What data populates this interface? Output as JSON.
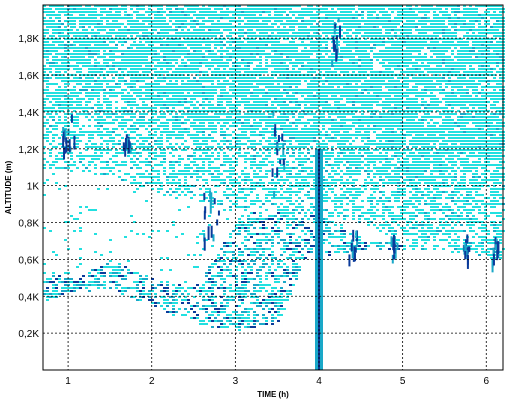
{
  "chart_data": {
    "type": "heatmap",
    "title": "",
    "xlabel": "TIME (h)",
    "ylabel": "ALTITUDE (m)",
    "xlim": [
      0.7,
      6.2
    ],
    "ylim": [
      0,
      1980
    ],
    "x_ticks": [
      {
        "value": 1,
        "label": "1"
      },
      {
        "value": 2,
        "label": "2"
      },
      {
        "value": 3,
        "label": "3"
      },
      {
        "value": 4,
        "label": "4"
      },
      {
        "value": 5,
        "label": "5"
      },
      {
        "value": 6,
        "label": "6"
      }
    ],
    "y_ticks": [
      {
        "value": 200,
        "label": "0,2K"
      },
      {
        "value": 400,
        "label": "0,4K"
      },
      {
        "value": 600,
        "label": "0,6K"
      },
      {
        "value": 800,
        "label": "0,8K"
      },
      {
        "value": 1000,
        "label": "1K"
      },
      {
        "value": 1200,
        "label": "1,2K"
      },
      {
        "value": 1400,
        "label": "1,4K"
      },
      {
        "value": 1600,
        "label": "1,6K"
      },
      {
        "value": 1800,
        "label": "1,8K"
      }
    ],
    "grid": true,
    "colors": {
      "background": "#ffffff",
      "weak": "#22e0e0",
      "medium": "#1aa8c8",
      "strong": "#0a3a9a",
      "grid": "#000000"
    },
    "regions": {
      "upper_noise_floor_m": [
        [
          0.7,
          1100
        ],
        [
          1.5,
          1050
        ],
        [
          2.2,
          950
        ],
        [
          3.0,
          880
        ],
        [
          4.0,
          850
        ],
        [
          4.5,
          800
        ],
        [
          5.0,
          680
        ],
        [
          5.5,
          650
        ],
        [
          6.2,
          600
        ]
      ],
      "boundary_layer_top_m": [
        [
          0.7,
          550
        ],
        [
          1.0,
          500
        ],
        [
          1.5,
          600
        ],
        [
          2.0,
          500
        ],
        [
          2.5,
          450
        ],
        [
          3.0,
          800
        ],
        [
          3.5,
          950
        ],
        [
          4.0,
          900
        ],
        [
          4.5,
          700
        ],
        [
          5.0,
          700
        ],
        [
          5.5,
          650
        ],
        [
          6.2,
          680
        ]
      ],
      "boundary_layer_bottom_m": [
        [
          0.7,
          380
        ],
        [
          1.0,
          420
        ],
        [
          1.5,
          440
        ],
        [
          2.0,
          350
        ],
        [
          2.5,
          250
        ],
        [
          3.0,
          220
        ],
        [
          3.5,
          250
        ],
        [
          3.8,
          600
        ],
        [
          4.5,
          650
        ],
        [
          6.2,
          650
        ]
      ],
      "strong_features": [
        {
          "x": 1.0,
          "y": 1300,
          "w": 0.15,
          "h": 200
        },
        {
          "x": 1.7,
          "y": 1250,
          "w": 0.1,
          "h": 60
        },
        {
          "x": 2.7,
          "y": 850,
          "w": 0.2,
          "h": 300
        },
        {
          "x": 3.5,
          "y": 1200,
          "w": 0.15,
          "h": 500
        },
        {
          "x": 4.2,
          "y": 1800,
          "w": 0.12,
          "h": 250
        },
        {
          "x": 4.4,
          "y": 700,
          "w": 0.1,
          "h": 150
        },
        {
          "x": 4.9,
          "y": 680,
          "w": 0.1,
          "h": 120
        },
        {
          "x": 5.75,
          "y": 680,
          "w": 0.08,
          "h": 120
        },
        {
          "x": 6.1,
          "y": 650,
          "w": 0.08,
          "h": 150
        }
      ],
      "vertical_column": {
        "x": 4.0,
        "y_from": 0,
        "y_to": 1200
      }
    }
  }
}
